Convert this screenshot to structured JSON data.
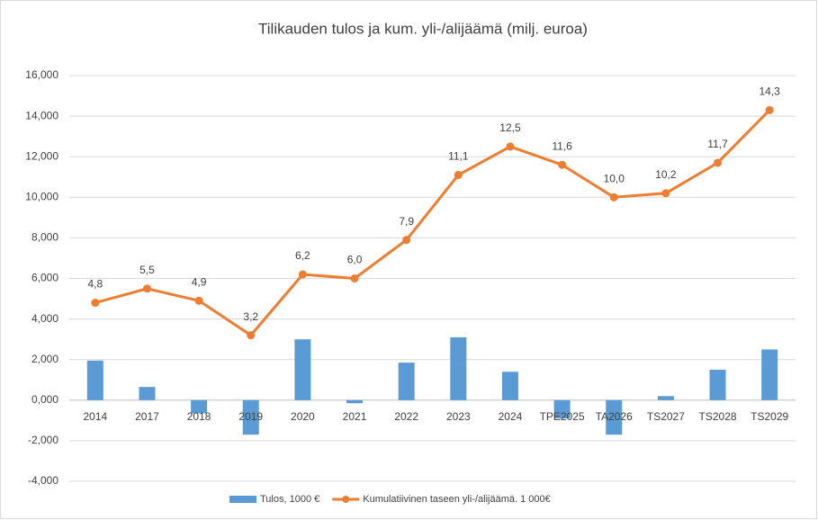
{
  "chart_data": {
    "type": "bar_line",
    "title": "Tilikauden tulos ja kum. yli-/alijäämä (milj. euroa)",
    "categories": [
      "2014",
      "2017",
      "2018",
      "2019",
      "2020",
      "2021",
      "2022",
      "2023",
      "2024",
      "TPE2025",
      "TA2026",
      "TS2027",
      "TS2028",
      "TS2029"
    ],
    "series": [
      {
        "name": "Tulos, 1000 €",
        "type": "bar",
        "color": "#5b9bd5",
        "values": [
          1.95,
          0.65,
          -0.65,
          -1.7,
          3.0,
          -0.15,
          1.85,
          3.1,
          1.4,
          -0.9,
          -1.7,
          0.2,
          1.5,
          2.5
        ]
      },
      {
        "name": "Kumulatiivinen taseen yli-/alijäämä. 1 000€",
        "type": "line",
        "color": "#ed7d31",
        "values": [
          4.8,
          5.5,
          4.9,
          3.2,
          6.2,
          6.0,
          7.9,
          11.1,
          12.5,
          11.6,
          10.0,
          10.2,
          11.7,
          14.3
        ],
        "value_labels": [
          "4,8",
          "5,5",
          "4,9",
          "3,2",
          "6,2",
          "6,0",
          "7,9",
          "11,1",
          "12,5",
          "11,6",
          "10,0",
          "10,2",
          "11,7",
          "14,3"
        ]
      }
    ],
    "ylim": [
      -4,
      16
    ],
    "yticks": [
      {
        "value": -4,
        "label": "-4,000"
      },
      {
        "value": -2,
        "label": "-2,000"
      },
      {
        "value": 0,
        "label": "0,000"
      },
      {
        "value": 2,
        "label": "2,000"
      },
      {
        "value": 4,
        "label": "4,000"
      },
      {
        "value": 6,
        "label": "6,000"
      },
      {
        "value": 8,
        "label": "8,000"
      },
      {
        "value": 10,
        "label": "10,000"
      },
      {
        "value": 12,
        "label": "12,000"
      },
      {
        "value": 14,
        "label": "14,000"
      },
      {
        "value": 16,
        "label": "16,000"
      }
    ],
    "grid": true,
    "legend": "bottom"
  }
}
